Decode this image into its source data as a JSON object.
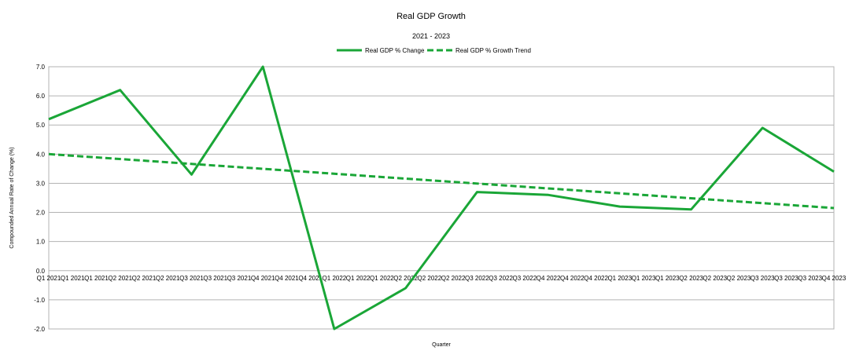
{
  "chart_data": {
    "type": "line",
    "title": "Real GDP Growth",
    "subtitle": "2021 - 2023",
    "xlabel": "Quarter",
    "ylabel": "Compounded Annual Rate of Change (%)",
    "ylim": [
      -2.0,
      7.0
    ],
    "yticks": [
      "7.0",
      "6.0",
      "5.0",
      "4.0",
      "3.0",
      "2.0",
      "1.0",
      "0.0",
      "-1.0",
      "-2.0"
    ],
    "grid": true,
    "legend_position": "top",
    "x_tick_labels": [
      "Q1 2021",
      "Q1 2021",
      "Q1 2021",
      "Q2 2021",
      "Q2 2021",
      "Q2 2021",
      "Q3 2021",
      "Q3 2021",
      "Q3 2021",
      "Q4 2021",
      "Q4 2021",
      "Q4 2021",
      "Q1 2022",
      "Q1 2022",
      "Q1 2022",
      "Q2 2022",
      "Q2 2022",
      "Q2 2022",
      "Q3 2022",
      "Q3 2022",
      "Q3 2022",
      "Q4 2022",
      "Q4 2022",
      "Q4 2022",
      "Q1 2023",
      "Q1 2023",
      "Q1 2023",
      "Q2 2023",
      "Q2 2023",
      "Q2 2023",
      "Q3 2023",
      "Q3 2023",
      "Q3 2023",
      "Q4 2023"
    ],
    "x_index_range": [
      0,
      33
    ],
    "series": [
      {
        "name": "Real GDP % Change",
        "color": "#1aa637",
        "style": "solid",
        "x_index": [
          0,
          3,
          6,
          9,
          12,
          15,
          18,
          21,
          24,
          27,
          30,
          33
        ],
        "values": [
          5.2,
          6.2,
          3.3,
          7.0,
          -2.0,
          -0.6,
          2.7,
          2.6,
          2.2,
          2.1,
          4.9,
          3.4
        ]
      },
      {
        "name": "Real GDP % Growth Trend",
        "color": "#1aa637",
        "style": "dashed",
        "x_index": [
          0,
          33
        ],
        "values": [
          4.0,
          2.15
        ]
      }
    ]
  }
}
